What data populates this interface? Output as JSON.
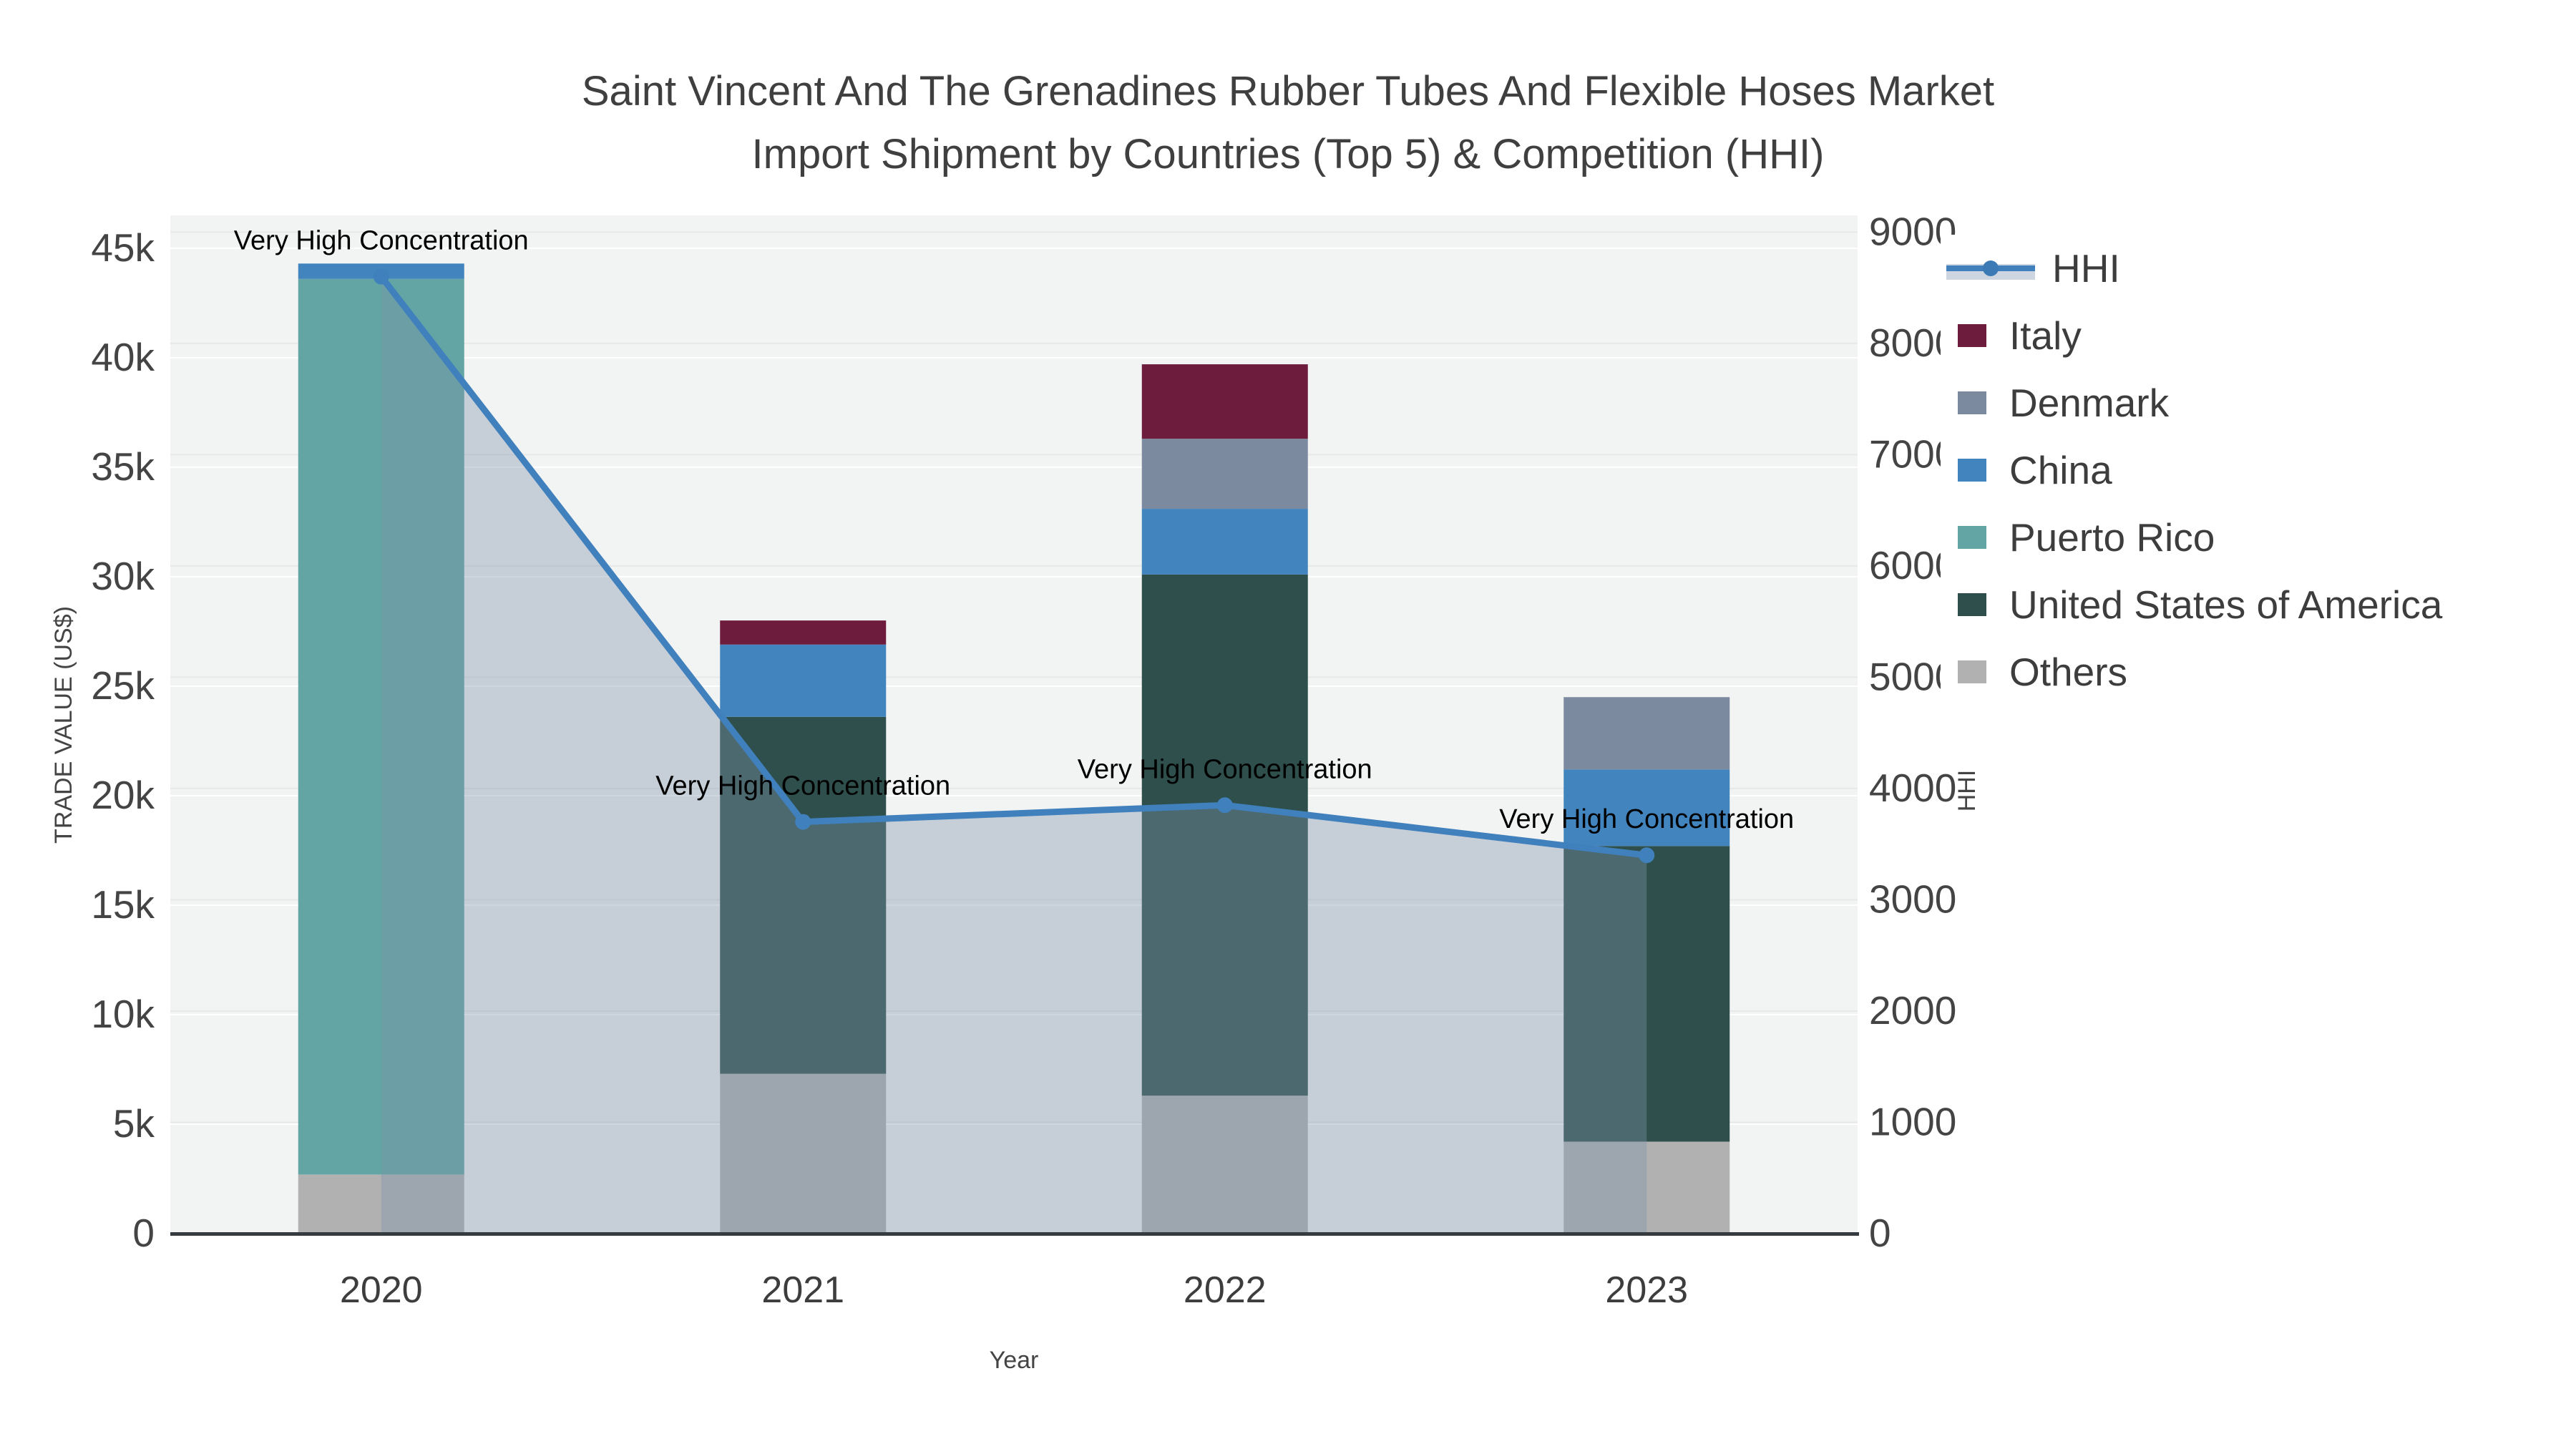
{
  "title": {
    "line1": "Saint Vincent And The Grenadines Rubber Tubes And Flexible Hoses Market",
    "line2": "Import Shipment by Countries (Top 5) & Competition (HHI)"
  },
  "axes": {
    "x": {
      "title": "Year",
      "categories": [
        "2020",
        "2021",
        "2022",
        "2023"
      ]
    },
    "y_left": {
      "title": "TRADE VALUE (US$)",
      "ticks": [
        "0",
        "5k",
        "10k",
        "15k",
        "20k",
        "25k",
        "30k",
        "35k",
        "40k",
        "45k"
      ],
      "tick_values": [
        0,
        5000,
        10000,
        15000,
        20000,
        25000,
        30000,
        35000,
        40000,
        45000
      ],
      "max": 46500
    },
    "y_right": {
      "title": "HHI",
      "ticks": [
        "0",
        "1000",
        "2000",
        "3000",
        "4000",
        "5000",
        "6000",
        "7000",
        "8000",
        "9000"
      ],
      "tick_values": [
        0,
        1000,
        2000,
        3000,
        4000,
        5000,
        6000,
        7000,
        8000,
        9000
      ],
      "max": 9150
    }
  },
  "legend": {
    "items": [
      {
        "label": "HHI",
        "color": "#4080bc",
        "kind": "line"
      },
      {
        "label": "Italy",
        "color": "#6d1c3e",
        "kind": "bar"
      },
      {
        "label": "Denmark",
        "color": "#7b8a9e",
        "kind": "bar"
      },
      {
        "label": "China",
        "color": "#4284bd",
        "kind": "bar"
      },
      {
        "label": "Puerto Rico",
        "color": "#62a5a4",
        "kind": "bar"
      },
      {
        "label": "United States of America",
        "color": "#2e4f4b",
        "kind": "bar"
      },
      {
        "label": "Others",
        "color": "#b1b1b1",
        "kind": "bar"
      }
    ]
  },
  "chart_data": {
    "type": "bar+line",
    "categories": [
      "2020",
      "2021",
      "2022",
      "2023"
    ],
    "bar_stack_bottom_to_top": [
      "Others",
      "United States of America",
      "Puerto Rico",
      "China",
      "Denmark",
      "Italy"
    ],
    "series": [
      {
        "name": "Others",
        "color": "#b1b1b1",
        "values": [
          2700,
          7300,
          6300,
          4200
        ]
      },
      {
        "name": "United States of America",
        "color": "#2e4f4b",
        "values": [
          0,
          16300,
          23800,
          13500
        ]
      },
      {
        "name": "Puerto Rico",
        "color": "#62a5a4",
        "values": [
          40900,
          0,
          0,
          0
        ]
      },
      {
        "name": "China",
        "color": "#4284bd",
        "values": [
          700,
          3300,
          3000,
          3500
        ]
      },
      {
        "name": "Denmark",
        "color": "#7b8a9e",
        "values": [
          0,
          0,
          3200,
          3300
        ]
      },
      {
        "name": "Italy",
        "color": "#6d1c3e",
        "values": [
          0,
          1100,
          3400,
          0
        ]
      }
    ],
    "line_series": {
      "name": "HHI",
      "axis": "right",
      "color": "#4080bc",
      "fill_color": "rgba(127,147,171,0.38)",
      "values": [
        8600,
        3700,
        3850,
        3400
      ]
    },
    "annotations": [
      "Very High Concentration",
      "Very High Concentration",
      "Very High Concentration",
      "Very High Concentration"
    ],
    "xlabel": "Year",
    "ylabel_left": "TRADE VALUE (US$)",
    "ylabel_right": "HHI",
    "ylim_left": [
      0,
      46500
    ],
    "ylim_right": [
      0,
      9150
    ],
    "plot_bg": "#f2f3f3",
    "grid_left_color": "#ffffff",
    "grid_right_color": "#e6e8e9",
    "axis_line_color": "#363b40",
    "tick_color": "#444444",
    "annotation_color": "#000000"
  }
}
